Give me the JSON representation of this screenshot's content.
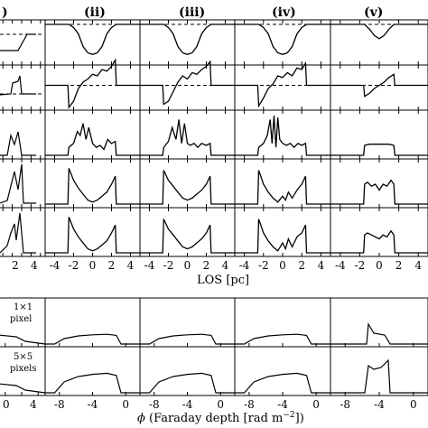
{
  "chart_data": {
    "type": "line",
    "column_labels": [
      ")",
      "(ii)",
      "(iii)",
      "(iv)",
      "(v)"
    ],
    "top_xlabel": "LOS [pc]",
    "top_xticks": [
      "-4",
      "-2",
      "0",
      "2",
      "4"
    ],
    "first_col_xticks": [
      "2",
      "4"
    ],
    "bottom_xlabel_prefix": "ϕ",
    "bottom_xlabel_main": " (Faraday depth [rad m",
    "bottom_xlabel_exp": "−2",
    "bottom_xlabel_end": "])",
    "bottom_xticks": [
      "-8",
      "-4",
      "0"
    ],
    "first_col_bottom_xticks": [
      "0",
      "4"
    ],
    "bottom_row_labels": [
      {
        "line1": "1×1",
        "line2": "pixel"
      },
      {
        "line1": "5×5",
        "line2": "pixels"
      }
    ],
    "los_xlim": [
      -5,
      5
    ],
    "fd_xlim": [
      -10,
      1
    ],
    "panels_description_rows": [
      "row1 with dashed reference line",
      "row2 with dashed reference line",
      "row3",
      "row4",
      "row5"
    ],
    "columns": [
      {
        "name": "(ii)",
        "rows": [
          {
            "dashed": 0.5,
            "x": [
              -5,
              -2.5,
              -2,
              -1.5,
              -1,
              -0.5,
              0,
              0.5,
              1,
              1.5,
              2,
              2.5,
              5
            ],
            "y": [
              0.5,
              0.5,
              0.4,
              0.2,
              -0.2,
              -0.4,
              -0.45,
              -0.4,
              -0.2,
              0.2,
              0.4,
              0.5,
              0.5
            ]
          },
          {
            "dashed": 0.0,
            "x": [
              -5,
              -2.6,
              -2.5,
              -2,
              -1.5,
              -1,
              -0.5,
              0,
              0.5,
              1,
              1.5,
              2,
              2.4,
              2.5,
              5
            ],
            "y": [
              0,
              0,
              -0.7,
              -0.5,
              -0.1,
              0.1,
              0.2,
              0.35,
              0.3,
              0.5,
              0.45,
              0.6,
              0.8,
              0,
              0
            ]
          },
          {
            "x": [
              -5,
              -2.6,
              -2.5,
              -2,
              -1.6,
              -1.3,
              -1,
              -0.7,
              -0.4,
              0,
              0.4,
              0.8,
              1.2,
              1.6,
              2,
              2.4,
              2.5,
              5
            ],
            "y": [
              0,
              0,
              0.2,
              0.3,
              0.6,
              0.5,
              0.8,
              0.4,
              0.7,
              0.3,
              0.2,
              0.25,
              0.15,
              0.4,
              0.3,
              0.35,
              0,
              0
            ]
          },
          {
            "x": [
              -5,
              -2.6,
              -2.5,
              -2,
              -1.5,
              -1,
              -0.5,
              0,
              0.5,
              1,
              1.5,
              2,
              2.4,
              2.5,
              5
            ],
            "y": [
              0,
              0,
              0.9,
              0.6,
              0.4,
              0.25,
              0.1,
              0.05,
              0.1,
              0.2,
              0.3,
              0.5,
              0.7,
              0,
              0
            ]
          },
          {
            "x": [
              -5,
              -2.6,
              -2.5,
              -2,
              -1.5,
              -1,
              -0.5,
              0,
              0.5,
              1,
              1.5,
              2,
              2.4,
              2.5,
              5
            ],
            "y": [
              0,
              0,
              0.9,
              0.6,
              0.4,
              0.25,
              0.1,
              0.05,
              0.1,
              0.2,
              0.3,
              0.5,
              0.7,
              0,
              0
            ]
          }
        ]
      },
      {
        "name": "(iii)",
        "rows": [
          {
            "dashed": 0.5,
            "x": [
              -5,
              -2.5,
              -2,
              -1.5,
              -1,
              -0.5,
              0,
              0.5,
              1,
              1.5,
              2,
              2.5,
              5
            ],
            "y": [
              0.5,
              0.5,
              0.4,
              0.2,
              -0.2,
              -0.4,
              -0.45,
              -0.4,
              -0.2,
              0.2,
              0.4,
              0.5,
              0.5
            ]
          },
          {
            "dashed": 0.0,
            "x": [
              -5,
              -2.6,
              -2.5,
              -2,
              -1.5,
              -1,
              -0.5,
              0,
              0.5,
              1,
              1.5,
              2,
              2.4,
              2.5,
              5
            ],
            "y": [
              0,
              0,
              -0.6,
              -0.5,
              -0.2,
              0.1,
              0.3,
              0.2,
              0.4,
              0.35,
              0.5,
              0.6,
              0.75,
              0,
              0
            ]
          },
          {
            "x": [
              -5,
              -2.6,
              -2.5,
              -2,
              -1.6,
              -1.2,
              -0.9,
              -0.6,
              -0.3,
              0,
              0.3,
              0.7,
              1.1,
              1.5,
              2,
              2.4,
              2.5,
              5
            ],
            "y": [
              0,
              0,
              0.2,
              0.35,
              0.7,
              0.4,
              0.9,
              0.3,
              0.8,
              0.3,
              0.25,
              0.3,
              0.2,
              0.3,
              0.25,
              0.3,
              0,
              0
            ]
          },
          {
            "x": [
              -5,
              -2.6,
              -2.5,
              -2,
              -1.5,
              -1,
              -0.5,
              0,
              0.5,
              1,
              1.5,
              2,
              2.4,
              2.5,
              5
            ],
            "y": [
              0,
              0,
              0.85,
              0.6,
              0.45,
              0.3,
              0.15,
              0.1,
              0.15,
              0.25,
              0.35,
              0.5,
              0.7,
              0,
              0
            ]
          },
          {
            "x": [
              -5,
              -2.6,
              -2.5,
              -2,
              -1.5,
              -1,
              -0.5,
              0,
              0.5,
              1,
              1.5,
              2,
              2.4,
              2.5,
              5
            ],
            "y": [
              0,
              0,
              0.85,
              0.6,
              0.45,
              0.3,
              0.15,
              0.1,
              0.15,
              0.25,
              0.35,
              0.5,
              0.7,
              0,
              0
            ]
          }
        ]
      },
      {
        "name": "(iv)",
        "rows": [
          {
            "dashed": 0.5,
            "x": [
              -5,
              -2.5,
              -2,
              -1.5,
              -1,
              -0.5,
              0,
              0.5,
              1,
              1.5,
              2,
              2.5,
              5
            ],
            "y": [
              0.5,
              0.5,
              0.4,
              0.2,
              -0.2,
              -0.4,
              -0.45,
              -0.4,
              -0.2,
              0.2,
              0.4,
              0.5,
              0.5
            ]
          },
          {
            "dashed": 0.0,
            "x": [
              -5,
              -2.6,
              -2.5,
              -2,
              -1.5,
              -1,
              -0.5,
              0,
              0.5,
              1,
              1.5,
              2,
              2.4,
              2.5,
              5
            ],
            "y": [
              0,
              0,
              -0.65,
              -0.4,
              -0.1,
              0.05,
              0.3,
              0.25,
              0.4,
              0.3,
              0.55,
              0.5,
              0.7,
              0,
              0
            ]
          },
          {
            "x": [
              -5,
              -2.6,
              -2.5,
              -2,
              -1.6,
              -1.3,
              -1.1,
              -0.9,
              -0.7,
              -0.5,
              -0.3,
              0,
              0.4,
              0.8,
              1.2,
              1.6,
              2,
              2.4,
              2.5,
              5
            ],
            "y": [
              0,
              0,
              0.2,
              0.3,
              0.5,
              0.9,
              0.3,
              1.0,
              0.2,
              0.95,
              0.4,
              0.3,
              0.25,
              0.3,
              0.2,
              0.3,
              0.25,
              0.3,
              0,
              0
            ]
          },
          {
            "x": [
              -5,
              -2.6,
              -2.5,
              -2,
              -1.5,
              -1,
              -0.5,
              0,
              0.3,
              0.6,
              1,
              1.5,
              2,
              2.4,
              2.5,
              5
            ],
            "y": [
              0,
              0,
              0.85,
              0.5,
              0.3,
              0.15,
              0.05,
              0.2,
              0.1,
              0.3,
              0.15,
              0.35,
              0.5,
              0.7,
              0,
              0
            ]
          },
          {
            "x": [
              -5,
              -2.6,
              -2.5,
              -2,
              -1.5,
              -1,
              -0.5,
              0,
              0.3,
              0.6,
              1,
              1.5,
              2,
              2.4,
              2.5,
              5
            ],
            "y": [
              0,
              0,
              0.85,
              0.5,
              0.3,
              0.15,
              0.05,
              0.25,
              0.1,
              0.35,
              0.15,
              0.4,
              0.5,
              0.7,
              0,
              0
            ]
          }
        ]
      },
      {
        "name": "(v)",
        "rows": [
          {
            "dashed": 0.5,
            "x": [
              -5,
              -1.5,
              -1,
              -0.5,
              0,
              0.5,
              1,
              1.5,
              5
            ],
            "y": [
              0.5,
              0.5,
              0.35,
              0.15,
              0.05,
              0.15,
              0.35,
              0.5,
              0.5
            ]
          },
          {
            "dashed": 0.0,
            "x": [
              -5,
              -1.6,
              -1.5,
              -1,
              -0.5,
              0,
              0.5,
              1,
              1.5,
              1.6,
              5
            ],
            "y": [
              0,
              0,
              -0.35,
              -0.25,
              -0.1,
              0,
              0.1,
              0.25,
              0.35,
              0,
              0
            ]
          },
          {
            "x": [
              -5,
              -1.6,
              -1.5,
              -1,
              -0.5,
              0,
              0.5,
              1,
              1.5,
              1.6,
              5
            ],
            "y": [
              0,
              0,
              0.25,
              0.28,
              0.28,
              0.28,
              0.28,
              0.28,
              0.25,
              0,
              0
            ]
          },
          {
            "x": [
              -5,
              -1.6,
              -1.5,
              -1.2,
              -0.8,
              -0.4,
              0,
              0.4,
              0.8,
              1.2,
              1.5,
              1.6,
              5
            ],
            "y": [
              0,
              0,
              0.5,
              0.55,
              0.45,
              0.5,
              0.35,
              0.5,
              0.45,
              0.6,
              0.5,
              0,
              0
            ]
          },
          {
            "x": [
              -5,
              -1.6,
              -1.5,
              -1.2,
              -0.8,
              -0.4,
              0,
              0.4,
              0.8,
              1.2,
              1.5,
              1.6,
              5
            ],
            "y": [
              0,
              0,
              0.45,
              0.5,
              0.45,
              0.4,
              0.35,
              0.45,
              0.4,
              0.55,
              0.45,
              0,
              0
            ]
          }
        ]
      }
    ]
  }
}
